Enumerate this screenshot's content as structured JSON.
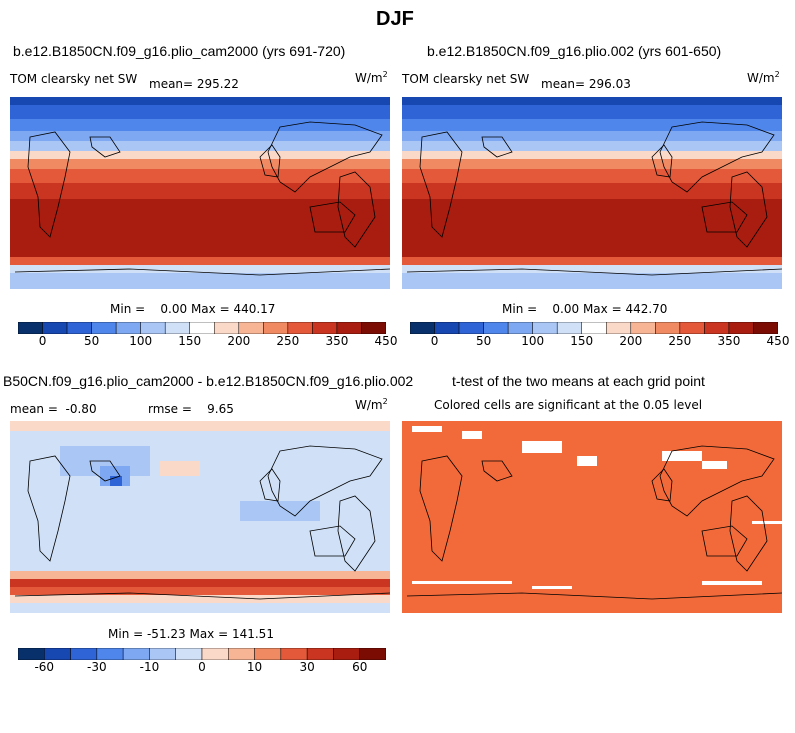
{
  "page_title": "DJF",
  "panel1": {
    "title": "b.e12.B1850CN.f09_g16.plio_cam2000 (yrs 691-720)",
    "var_label": "TOM clearsky net SW",
    "mean_label": "mean= 295.22",
    "units": "W/m",
    "units_sup": "2",
    "minmax": "Min =    0.00 Max = 440.17",
    "colorbar_ticks": [
      "0",
      "50",
      "100",
      "150",
      "200",
      "250",
      "350",
      "450"
    ]
  },
  "panel2": {
    "title": "b.e12.B1850CN.f09_g16.plio.002 (yrs 601-650)",
    "var_label": "TOM clearsky net SW",
    "mean_label": "mean= 296.03",
    "units": "W/m",
    "units_sup": "2",
    "minmax": "Min =    0.00 Max = 442.70",
    "colorbar_ticks": [
      "0",
      "50",
      "100",
      "150",
      "200",
      "250",
      "350",
      "450"
    ]
  },
  "panel3": {
    "title": "B50CN.f09_g16.plio_cam2000 - b.e12.B1850CN.f09_g16.plio.002",
    "mean_label": "mean =  -0.80",
    "rmse_label": "rmse =    9.65",
    "units": "W/m",
    "units_sup": "2",
    "minmax": "Min = -51.23 Max = 141.51",
    "colorbar_ticks": [
      "-60",
      "-30",
      "-10",
      "0",
      "10",
      "30",
      "60"
    ]
  },
  "panel4": {
    "title": "t-test of the two means at each grid point",
    "subtitle": "Colored cells are significant at the 0.05 level"
  },
  "colors": {
    "abs_scale": [
      "#08306b",
      "#1747b0",
      "#2f64d6",
      "#4f86ec",
      "#7ea8f2",
      "#a9c6f5",
      "#cfe0f7",
      "#ffffff",
      "#fbd9c8",
      "#f7b596",
      "#f08a63",
      "#e4593a",
      "#c93520",
      "#a81d10",
      "#7a0c04"
    ],
    "diff_scale": [
      "#08306b",
      "#1747b0",
      "#2f64d6",
      "#4f86ec",
      "#7ea8f2",
      "#a9c6f5",
      "#cfe0f7",
      "#fbd9c8",
      "#f7b596",
      "#f08a63",
      "#e4593a",
      "#c93520",
      "#a81d10",
      "#7a0c04"
    ],
    "signif": "#f26a3a"
  }
}
